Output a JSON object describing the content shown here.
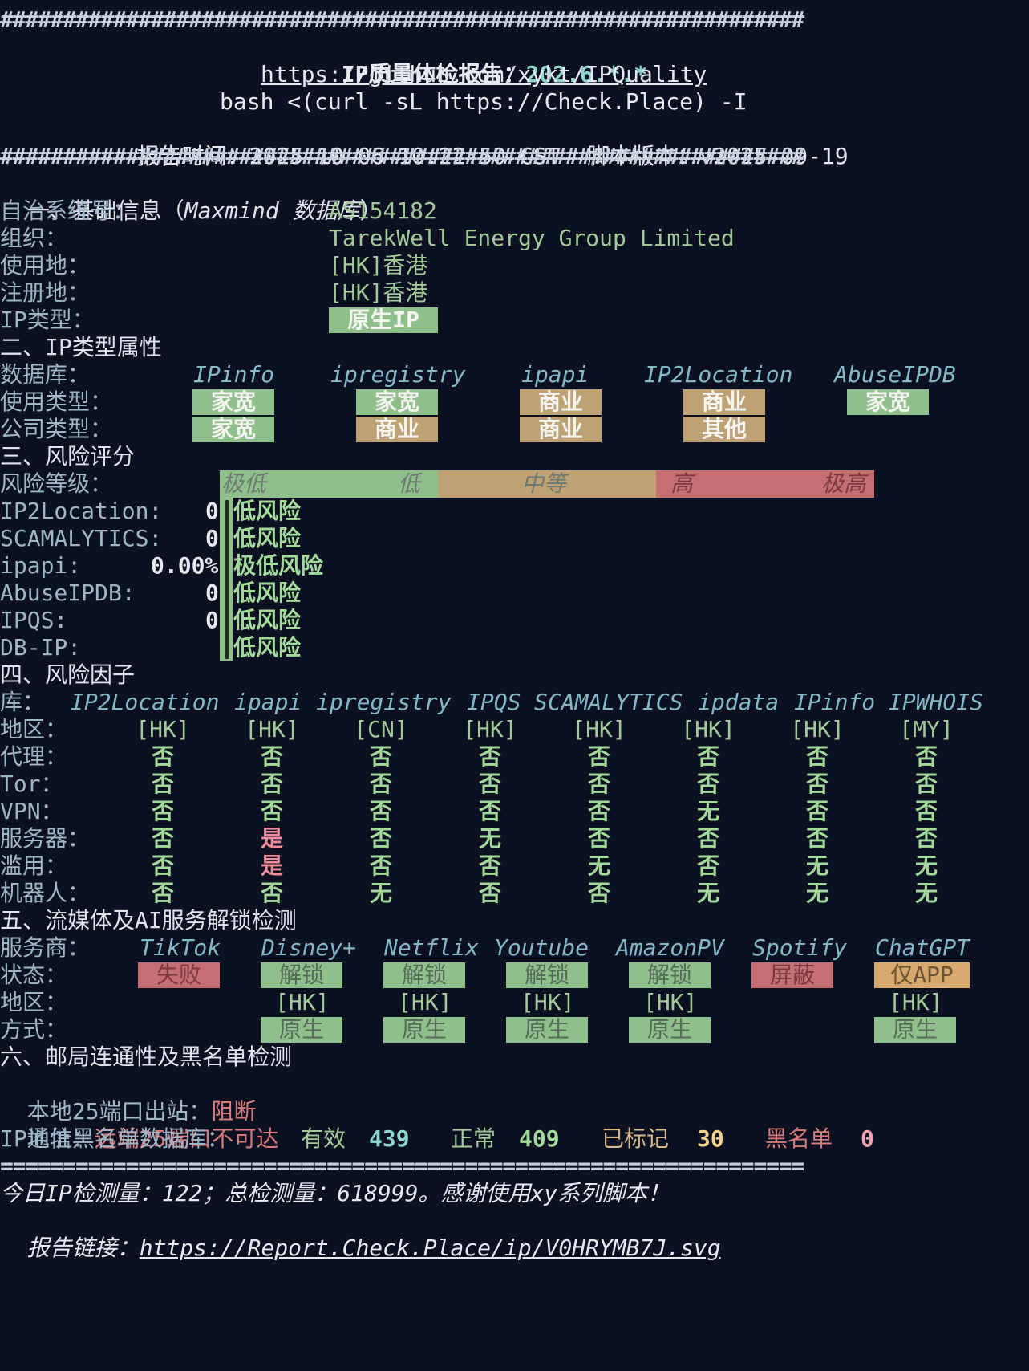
{
  "header": {
    "hash_rule": "################################################################",
    "title_label": "IP质量体检报告：",
    "title_ip": "202.6.*.*",
    "repo_url": "https://github.com/xykt/IPQuality",
    "command": "bash <(curl -sL https://Check.Place) -I",
    "report_time_label": "报告时间：",
    "report_time": "2025-10-06 10:22:50 CST",
    "script_version_label": "脚本版本：",
    "script_version": "v2025-09-19"
  },
  "basic": {
    "heading": "一、基础信息（",
    "heading_db": "Maxmind 数据库",
    "heading_end": "）",
    "asn_label": "自治系统号：",
    "asn": "AS154182",
    "org_label": "组织：",
    "org": "TarekWell Energy Group Limited",
    "usage_label": "使用地：",
    "usage": "[HK]香港",
    "reg_label": "注册地：",
    "reg": "[HK]香港",
    "type_label": "IP类型：",
    "type": "原生IP"
  },
  "attr": {
    "heading": "二、IP类型属性",
    "db_label": "数据库：",
    "use_label": "使用类型：",
    "co_label": "公司类型：",
    "dbs": [
      "IPinfo",
      "ipregistry",
      "ipapi",
      "IP2Location",
      "AbuseIPDB"
    ],
    "use": [
      "家宽",
      "家宽",
      "商业",
      "商业",
      "家宽"
    ],
    "co": [
      "家宽",
      "商业",
      "商业",
      "其他",
      ""
    ]
  },
  "risk": {
    "heading": "三、风险评分",
    "level_label": "风险等级：",
    "scale": [
      "极低",
      "低",
      "中等",
      "高",
      "极高"
    ],
    "rows": [
      {
        "label": "IP2Location:",
        "score": "0",
        "text": "低风险"
      },
      {
        "label": "SCAMALYTICS:",
        "score": "0",
        "text": "低风险"
      },
      {
        "label": "ipapi:",
        "score": "0.00%",
        "text": "极低风险"
      },
      {
        "label": "AbuseIPDB:",
        "score": "0",
        "text": "低风险"
      },
      {
        "label": "IPQS:",
        "score": "0",
        "text": "低风险"
      },
      {
        "label": "DB-IP:",
        "score": "",
        "text": "低风险"
      }
    ]
  },
  "factors": {
    "heading": "四、风险因子",
    "lib_label": "库：",
    "dbs": [
      "IP2Location",
      "ipapi",
      "ipregistry",
      "IPQS",
      "SCAMALYTICS",
      "ipdata",
      "IPinfo",
      "IPWHOIS"
    ],
    "rows": [
      {
        "label": "地区：",
        "values": [
          "[HK]",
          "[HK]",
          "[CN]",
          "[HK]",
          "[HK]",
          "[HK]",
          "[HK]",
          "[MY]"
        ]
      },
      {
        "label": "代理：",
        "values": [
          "否",
          "否",
          "否",
          "否",
          "否",
          "否",
          "否",
          "否"
        ]
      },
      {
        "label": "Tor：",
        "values": [
          "否",
          "否",
          "否",
          "否",
          "否",
          "否",
          "否",
          "否"
        ]
      },
      {
        "label": "VPN：",
        "values": [
          "否",
          "否",
          "否",
          "否",
          "否",
          "无",
          "否",
          "否"
        ]
      },
      {
        "label": "服务器：",
        "values": [
          "否",
          "是",
          "否",
          "无",
          "否",
          "否",
          "否",
          "否"
        ]
      },
      {
        "label": "滥用：",
        "values": [
          "否",
          "是",
          "否",
          "否",
          "无",
          "否",
          "无",
          "无"
        ]
      },
      {
        "label": "机器人：",
        "values": [
          "否",
          "否",
          "无",
          "否",
          "否",
          "无",
          "无",
          "无"
        ]
      }
    ]
  },
  "stream": {
    "heading": "五、流媒体及AI服务解锁检测",
    "provider_label": "服务商：",
    "status_label": "状态：",
    "region_label": "地区：",
    "method_label": "方式：",
    "providers": [
      "TikTok",
      "Disney+",
      "Netflix",
      "Youtube",
      "AmazonPV",
      "Spotify",
      "ChatGPT"
    ],
    "status": [
      "失败",
      "解锁",
      "解锁",
      "解锁",
      "解锁",
      "屏蔽",
      "仅APP"
    ],
    "region": [
      "",
      "[HK]",
      "[HK]",
      "[HK]",
      "[HK]",
      "",
      "[HK]"
    ],
    "method": [
      "",
      "原生",
      "原生",
      "原生",
      "原生",
      "",
      "原生"
    ]
  },
  "mail": {
    "heading": "六、邮局连通性及黑名单检测",
    "port_label": "本地25端口出站：",
    "port_value": "阻断",
    "comm_label": "通信：",
    "comm_value": "远端25端口不可达",
    "bl_label": "IP地址黑名单数据库：",
    "valid_label": "有效",
    "valid": "439",
    "normal_label": "正常",
    "normal": "409",
    "marked_label": "已标记",
    "marked": "30",
    "black_label": "黑名单",
    "black": "0"
  },
  "footer": {
    "eq_rule": "================================================================",
    "stats": "今日IP检测量：122；总检测量：618999。感谢使用xy系列脚本！",
    "link_label": "报告链接：",
    "link": "https://Report.Check.Place/ip/V0HRYMB7J.svg"
  }
}
